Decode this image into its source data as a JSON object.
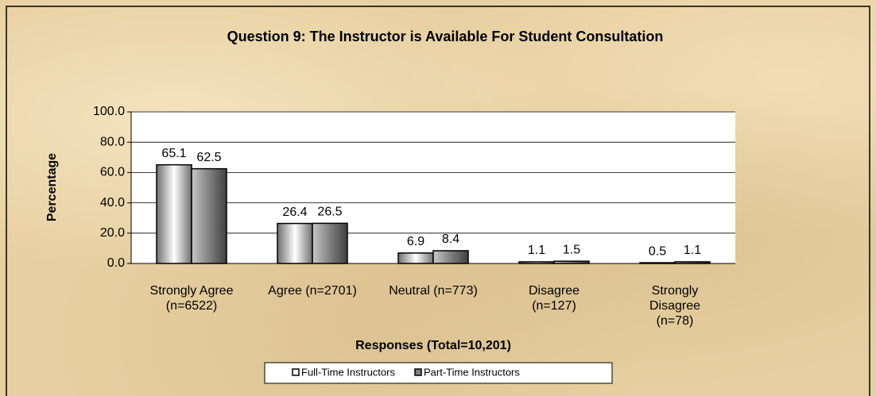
{
  "chart_data": {
    "type": "bar",
    "title": "Question 9:  The Instructor is Available For Student Consultation",
    "x_label": "Responses (Total=10,201)",
    "y_label": "Percentage",
    "categories": [
      "Strongly Agree\n(n=6522)",
      "Agree (n=2701)",
      "Neutral (n=773)",
      "Disagree\n(n=127)",
      "Strongly\nDisagree\n(n=78)"
    ],
    "series": [
      {
        "name": "Full-Time Instructors",
        "color": "#ffffff",
        "values": [
          65.1,
          26.4,
          6.9,
          1.1,
          0.5
        ]
      },
      {
        "name": "Part-Time Instructors",
        "color": "#808080",
        "values": [
          62.5,
          26.5,
          8.4,
          1.5,
          1.1
        ]
      }
    ],
    "ylim": [
      0,
      100
    ],
    "yticks": [
      {
        "value": 0,
        "label": "0.0"
      },
      {
        "value": 20,
        "label": "20.0"
      },
      {
        "value": 40,
        "label": "40.0"
      },
      {
        "value": 60,
        "label": "60.0"
      },
      {
        "value": 80,
        "label": "80.0"
      },
      {
        "value": 100,
        "label": "100.0"
      }
    ],
    "grid": true,
    "legend": "bottom"
  }
}
